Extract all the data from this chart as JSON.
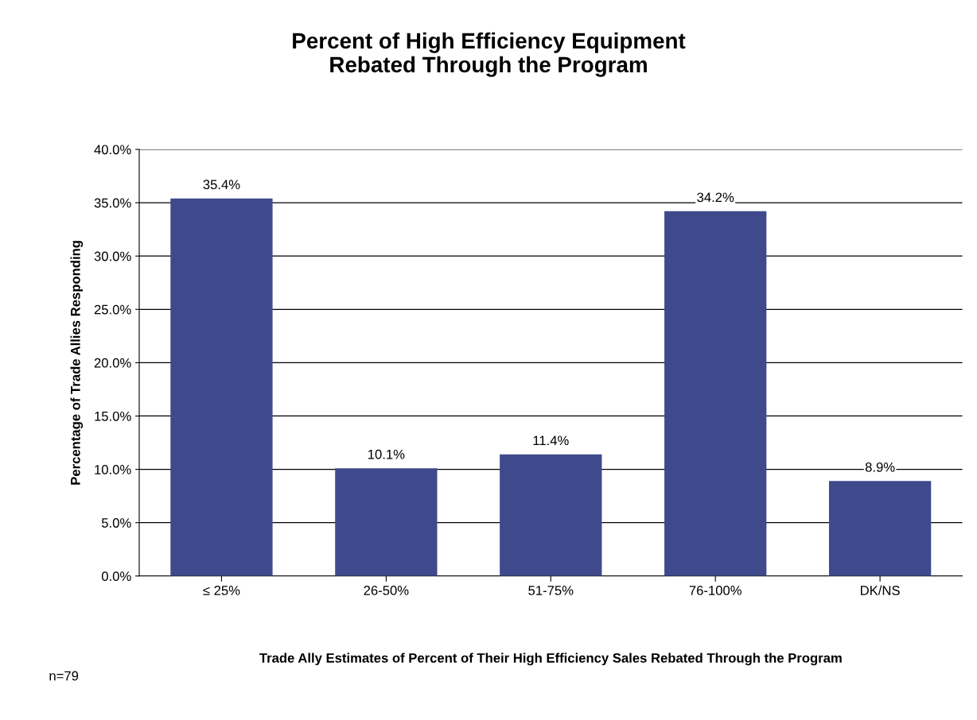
{
  "chart_data": {
    "type": "bar",
    "title": "Percent of High Efficiency Equipment\nRebated Through the Program",
    "xlabel": "Trade Ally Estimates of Percent of Their High Efficiency Sales Rebated Through the Program",
    "ylabel": "Percentage of Trade Allies Responding",
    "categories": [
      "≤ 25%",
      "26-50%",
      "51-75%",
      "76-100%",
      "DK/NS"
    ],
    "values": [
      35.4,
      10.1,
      11.4,
      34.2,
      8.9
    ],
    "value_labels": [
      "35.4%",
      "10.1%",
      "11.4%",
      "34.2%",
      "8.9%"
    ],
    "color": "#3f4a8c",
    "ylim": [
      0,
      40
    ],
    "yticks": [
      {
        "value": 0,
        "label": "0.0%"
      },
      {
        "value": 5,
        "label": "5.0%"
      },
      {
        "value": 10,
        "label": "10.0%"
      },
      {
        "value": 15,
        "label": "15.0%"
      },
      {
        "value": 20,
        "label": "20.0%"
      },
      {
        "value": 25,
        "label": "25.0%"
      },
      {
        "value": 30,
        "label": "30.0%"
      },
      {
        "value": 35,
        "label": "35.0%"
      },
      {
        "value": 40,
        "label": "40.0%"
      }
    ],
    "grid": "y",
    "legend": false,
    "annotations": [
      "n=79"
    ]
  }
}
